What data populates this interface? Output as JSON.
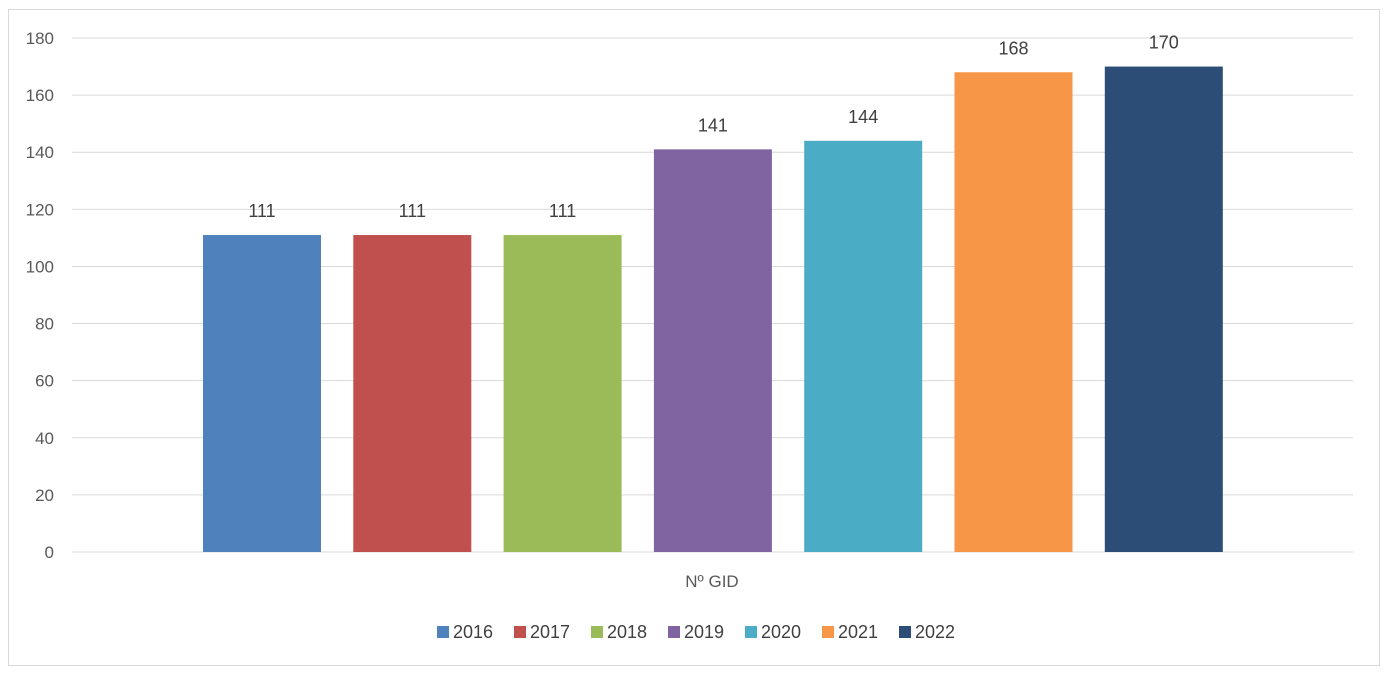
{
  "chart_data": {
    "type": "bar",
    "title": "",
    "xlabel": "",
    "ylabel": "",
    "category_label": "Nº GID",
    "ylim": [
      0,
      180
    ],
    "yticks": [
      0,
      20,
      40,
      60,
      80,
      100,
      120,
      140,
      160,
      180
    ],
    "grid": true,
    "legend_position": "bottom",
    "series": [
      {
        "name": "2016",
        "values": [
          111
        ],
        "color": "#4f81bd"
      },
      {
        "name": "2017",
        "values": [
          111
        ],
        "color": "#c0504d"
      },
      {
        "name": "2018",
        "values": [
          111
        ],
        "color": "#9bbb59"
      },
      {
        "name": "2019",
        "values": [
          141
        ],
        "color": "#8064a2"
      },
      {
        "name": "2020",
        "values": [
          144
        ],
        "color": "#4bacc6"
      },
      {
        "name": "2021",
        "values": [
          168
        ],
        "color": "#f79646"
      },
      {
        "name": "2022",
        "values": [
          170
        ],
        "color": "#2c4d75"
      }
    ]
  }
}
